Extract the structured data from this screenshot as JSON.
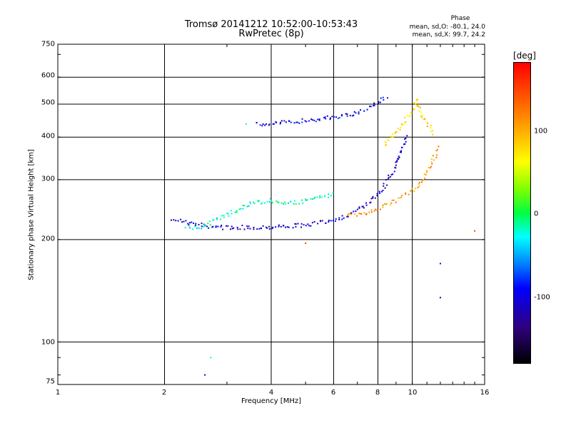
{
  "chart_data": {
    "type": "scatter",
    "title": "Tromsø 20141212 10:52:00-10:53:43",
    "subtitle": "RwPretec (8p)",
    "xlabel": "Frequency [MHz]",
    "ylabel": "Stationary phase Virtual Height [km]",
    "x_scale": "log",
    "y_scale": "log",
    "xlim": [
      1,
      16
    ],
    "ylim": [
      75,
      750
    ],
    "x_ticks": [
      "1",
      "2",
      "4",
      "6",
      "8",
      "10",
      "16"
    ],
    "y_ticks": [
      "75",
      "100",
      "200",
      "300",
      "400",
      "500",
      "600",
      "750"
    ],
    "grid": true,
    "colorbar": {
      "label": "[deg]",
      "ticks": [
        "100",
        "0",
        "-100"
      ],
      "range": [
        -180,
        180
      ]
    },
    "phase_stats": {
      "title": "Phase",
      "o_line": "mean, sd,O: -80.1, 24.0",
      "x_line": "mean, sd,X:  99.7, 24.2"
    },
    "traces": [
      {
        "name": "",
        "phase": -110,
        "points": [
          [
            2.1,
            232
          ],
          [
            2.3,
            225
          ],
          [
            2.6,
            220
          ],
          [
            3.0,
            218
          ],
          [
            3.5,
            218
          ],
          [
            4.0,
            219
          ],
          [
            4.5,
            220
          ],
          [
            5.0,
            222
          ],
          [
            5.5,
            225
          ],
          [
            6.0,
            230
          ],
          [
            6.5,
            236
          ],
          [
            7.0,
            245
          ],
          [
            7.5,
            258
          ],
          [
            8.0,
            275
          ],
          [
            8.5,
            300
          ],
          [
            9.0,
            335
          ],
          [
            9.3,
            370
          ],
          [
            9.6,
            410
          ]
        ]
      },
      {
        "name": "",
        "phase": -95,
        "points": [
          [
            3.6,
            437
          ],
          [
            4.0,
            440
          ],
          [
            4.5,
            445
          ],
          [
            5.0,
            450
          ],
          [
            5.5,
            455
          ],
          [
            6.0,
            460
          ],
          [
            6.5,
            466
          ],
          [
            7.0,
            475
          ],
          [
            7.5,
            490
          ],
          [
            8.0,
            510
          ],
          [
            8.5,
            530
          ]
        ]
      },
      {
        "name": "",
        "phase": 110,
        "points": [
          [
            6.5,
            235
          ],
          [
            7.0,
            238
          ],
          [
            7.5,
            242
          ],
          [
            8.0,
            248
          ],
          [
            8.5,
            255
          ],
          [
            9.0,
            262
          ],
          [
            9.5,
            270
          ],
          [
            10.0,
            280
          ],
          [
            10.5,
            295
          ],
          [
            11.0,
            320
          ],
          [
            11.5,
            350
          ],
          [
            11.8,
            380
          ]
        ]
      },
      {
        "name": "",
        "phase": -20,
        "points": [
          [
            2.3,
            215
          ],
          [
            2.5,
            218
          ],
          [
            3.0,
            238
          ],
          [
            3.5,
            257
          ],
          [
            4.0,
            262
          ],
          [
            4.5,
            256
          ],
          [
            5.0,
            262
          ],
          [
            5.5,
            268
          ],
          [
            6.0,
            272
          ]
        ]
      },
      {
        "name": "",
        "phase": 80,
        "points": [
          [
            8.3,
            380
          ],
          [
            8.6,
            400
          ],
          [
            9.0,
            420
          ],
          [
            9.5,
            450
          ],
          [
            10.0,
            480
          ],
          [
            10.2,
            520
          ],
          [
            10.5,
            470
          ],
          [
            11.0,
            440
          ],
          [
            11.5,
            410
          ]
        ]
      }
    ],
    "isolated_points": [
      {
        "x": 2.7,
        "y": 90,
        "phase": -20
      },
      {
        "x": 2.6,
        "y": 80,
        "phase": -130
      },
      {
        "x": 5.0,
        "y": 195,
        "phase": 150
      },
      {
        "x": 12.0,
        "y": 170,
        "phase": -110
      },
      {
        "x": 12.0,
        "y": 135,
        "phase": -110
      },
      {
        "x": 15.0,
        "y": 212,
        "phase": 150
      },
      {
        "x": 3.4,
        "y": 437,
        "phase": -20
      }
    ]
  }
}
